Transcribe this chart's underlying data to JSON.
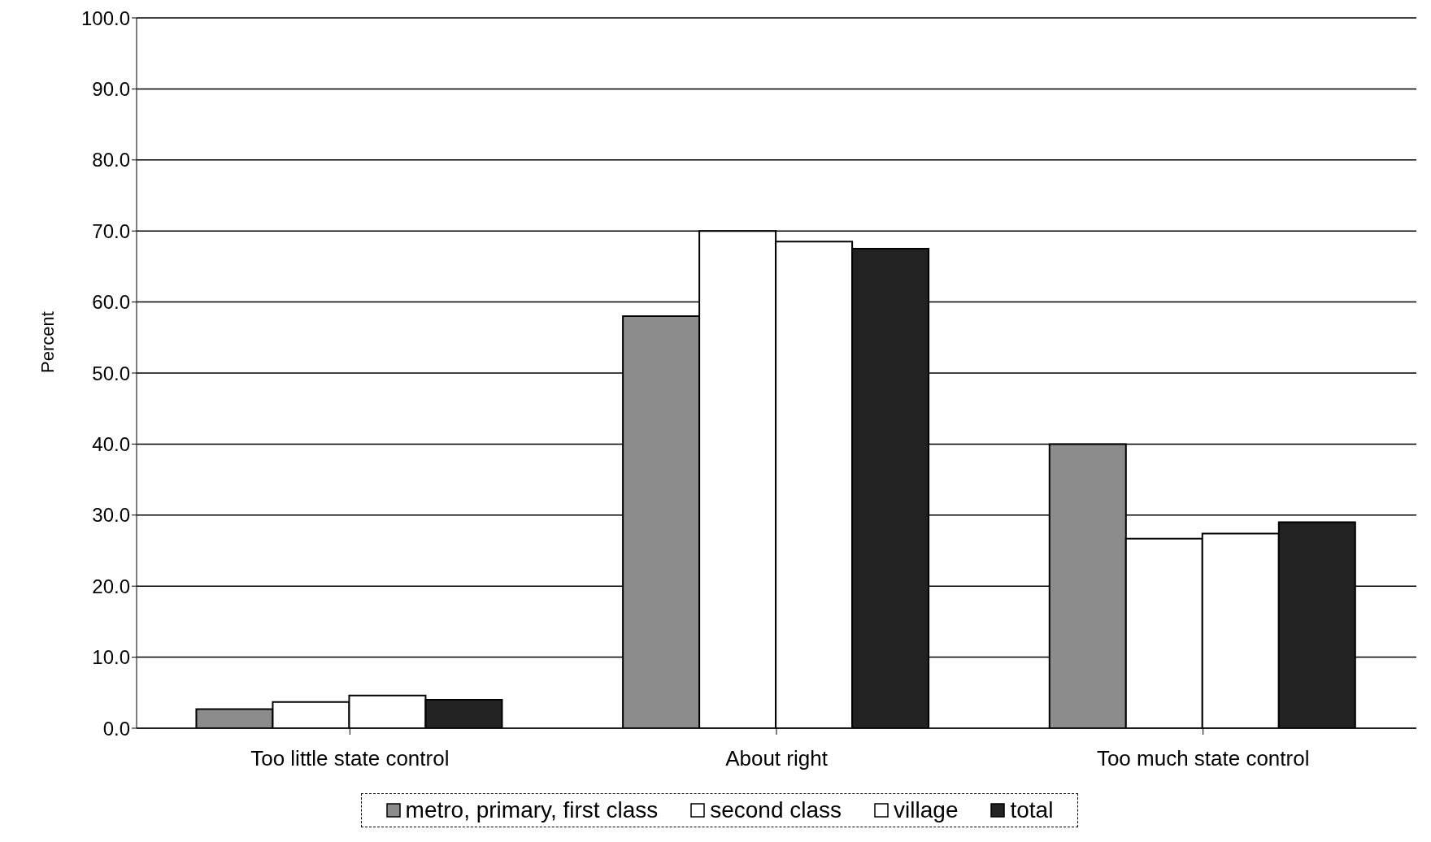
{
  "chart_data": {
    "type": "bar",
    "ylabel": "Percent",
    "categories": [
      "Too little state control",
      "About right",
      "Too much state control"
    ],
    "series": [
      {
        "name": "metro, primary, first class",
        "color": "#8c8c8c",
        "values": [
          2.7,
          58.0,
          40.0
        ]
      },
      {
        "name": "second class",
        "color": "#ffffff",
        "values": [
          3.7,
          70.0,
          26.7
        ]
      },
      {
        "name": "village",
        "color": "#ffffff",
        "values": [
          4.6,
          68.5,
          27.4
        ]
      },
      {
        "name": "total",
        "color": "#222222",
        "values": [
          4.0,
          67.5,
          29.0
        ]
      }
    ],
    "ylim": [
      0,
      100
    ],
    "yticks": [
      {
        "value": 0,
        "label": "0.0"
      },
      {
        "value": 10,
        "label": "10.0"
      },
      {
        "value": 20,
        "label": "20.0"
      },
      {
        "value": 30,
        "label": "30.0"
      },
      {
        "value": 40,
        "label": "40.0"
      },
      {
        "value": 50,
        "label": "50.0"
      },
      {
        "value": 60,
        "label": "60.0"
      },
      {
        "value": 70,
        "label": "70.0"
      },
      {
        "value": 80,
        "label": "80.0"
      },
      {
        "value": 90,
        "label": "90.0"
      },
      {
        "value": 100,
        "label": "100.0"
      }
    ],
    "grid": "y",
    "legend": "bottom"
  }
}
